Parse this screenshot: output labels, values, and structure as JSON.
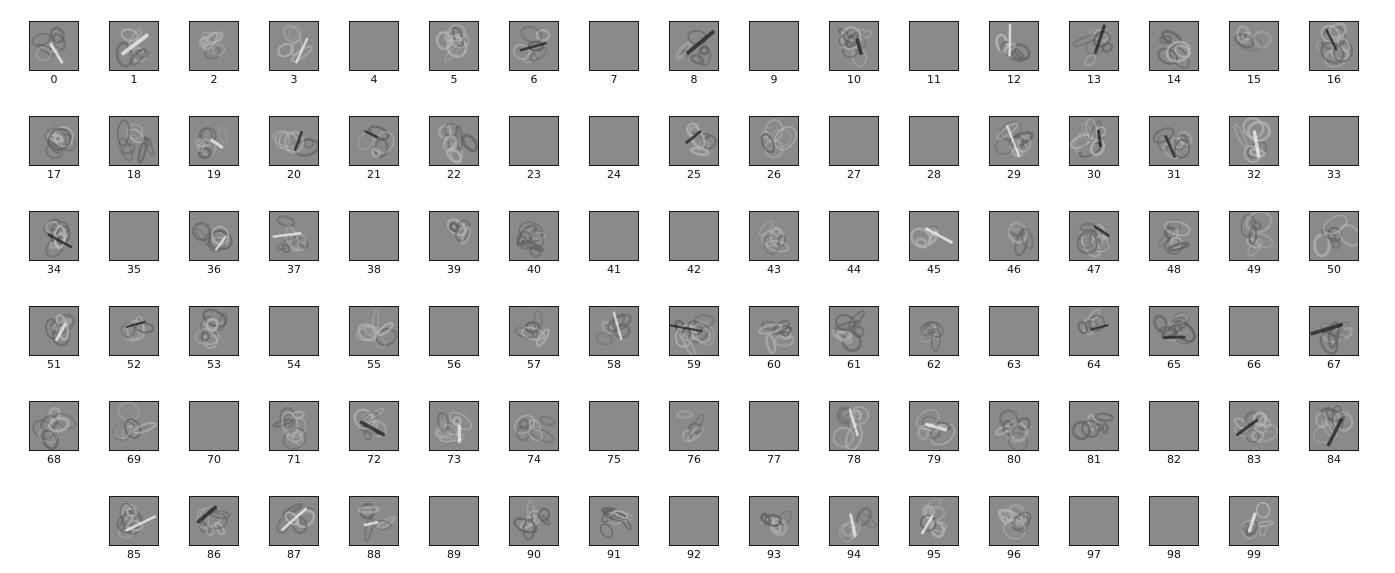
{
  "colors": {
    "background": "#ffffff",
    "tile_gray": "#8a8a8a",
    "tile_border": "#1a1a1a",
    "label": "#111111"
  },
  "filters": {
    "row_counts": [
      17,
      17,
      17,
      17,
      17,
      15
    ],
    "last_row_starts_at_column": 1,
    "items": [
      {
        "label": "0",
        "blank": false
      },
      {
        "label": "1",
        "blank": false
      },
      {
        "label": "2",
        "blank": false
      },
      {
        "label": "3",
        "blank": false
      },
      {
        "label": "4",
        "blank": true
      },
      {
        "label": "5",
        "blank": false
      },
      {
        "label": "6",
        "blank": false
      },
      {
        "label": "7",
        "blank": true
      },
      {
        "label": "8",
        "blank": false
      },
      {
        "label": "9",
        "blank": true
      },
      {
        "label": "10",
        "blank": false
      },
      {
        "label": "11",
        "blank": true
      },
      {
        "label": "12",
        "blank": false
      },
      {
        "label": "13",
        "blank": false
      },
      {
        "label": "14",
        "blank": false
      },
      {
        "label": "15",
        "blank": false
      },
      {
        "label": "16",
        "blank": false
      },
      {
        "label": "17",
        "blank": false
      },
      {
        "label": "18",
        "blank": false
      },
      {
        "label": "19",
        "blank": false
      },
      {
        "label": "20",
        "blank": false
      },
      {
        "label": "21",
        "blank": false
      },
      {
        "label": "22",
        "blank": false
      },
      {
        "label": "23",
        "blank": true
      },
      {
        "label": "24",
        "blank": true
      },
      {
        "label": "25",
        "blank": false
      },
      {
        "label": "26",
        "blank": false
      },
      {
        "label": "27",
        "blank": true
      },
      {
        "label": "28",
        "blank": true
      },
      {
        "label": "29",
        "blank": false
      },
      {
        "label": "30",
        "blank": false
      },
      {
        "label": "31",
        "blank": false
      },
      {
        "label": "32",
        "blank": false
      },
      {
        "label": "33",
        "blank": true
      },
      {
        "label": "34",
        "blank": false
      },
      {
        "label": "35",
        "blank": true
      },
      {
        "label": "36",
        "blank": false
      },
      {
        "label": "37",
        "blank": false
      },
      {
        "label": "38",
        "blank": true
      },
      {
        "label": "39",
        "blank": false
      },
      {
        "label": "40",
        "blank": false
      },
      {
        "label": "41",
        "blank": true
      },
      {
        "label": "42",
        "blank": true
      },
      {
        "label": "43",
        "blank": false
      },
      {
        "label": "44",
        "blank": true
      },
      {
        "label": "45",
        "blank": false
      },
      {
        "label": "46",
        "blank": false
      },
      {
        "label": "47",
        "blank": false
      },
      {
        "label": "48",
        "blank": false
      },
      {
        "label": "49",
        "blank": false
      },
      {
        "label": "50",
        "blank": false
      },
      {
        "label": "51",
        "blank": false
      },
      {
        "label": "52",
        "blank": false
      },
      {
        "label": "53",
        "blank": false
      },
      {
        "label": "54",
        "blank": true
      },
      {
        "label": "55",
        "blank": false
      },
      {
        "label": "56",
        "blank": true
      },
      {
        "label": "57",
        "blank": false
      },
      {
        "label": "58",
        "blank": false
      },
      {
        "label": "59",
        "blank": false
      },
      {
        "label": "60",
        "blank": false
      },
      {
        "label": "61",
        "blank": false
      },
      {
        "label": "62",
        "blank": false
      },
      {
        "label": "63",
        "blank": true
      },
      {
        "label": "64",
        "blank": false
      },
      {
        "label": "65",
        "blank": false
      },
      {
        "label": "66",
        "blank": true
      },
      {
        "label": "67",
        "blank": false
      },
      {
        "label": "68",
        "blank": false
      },
      {
        "label": "69",
        "blank": false
      },
      {
        "label": "70",
        "blank": true
      },
      {
        "label": "71",
        "blank": false
      },
      {
        "label": "72",
        "blank": false
      },
      {
        "label": "73",
        "blank": false
      },
      {
        "label": "74",
        "blank": false
      },
      {
        "label": "75",
        "blank": true
      },
      {
        "label": "76",
        "blank": false
      },
      {
        "label": "77",
        "blank": true
      },
      {
        "label": "78",
        "blank": false
      },
      {
        "label": "79",
        "blank": false
      },
      {
        "label": "80",
        "blank": false
      },
      {
        "label": "81",
        "blank": false
      },
      {
        "label": "82",
        "blank": true
      },
      {
        "label": "83",
        "blank": false
      },
      {
        "label": "84",
        "blank": false
      },
      {
        "label": "85",
        "blank": false
      },
      {
        "label": "86",
        "blank": false
      },
      {
        "label": "87",
        "blank": false
      },
      {
        "label": "88",
        "blank": false
      },
      {
        "label": "89",
        "blank": true
      },
      {
        "label": "90",
        "blank": false
      },
      {
        "label": "91",
        "blank": false
      },
      {
        "label": "92",
        "blank": true
      },
      {
        "label": "93",
        "blank": false
      },
      {
        "label": "94",
        "blank": false
      },
      {
        "label": "95",
        "blank": false
      },
      {
        "label": "96",
        "blank": false
      },
      {
        "label": "97",
        "blank": true
      },
      {
        "label": "98",
        "blank": true
      },
      {
        "label": "99",
        "blank": false
      }
    ]
  }
}
